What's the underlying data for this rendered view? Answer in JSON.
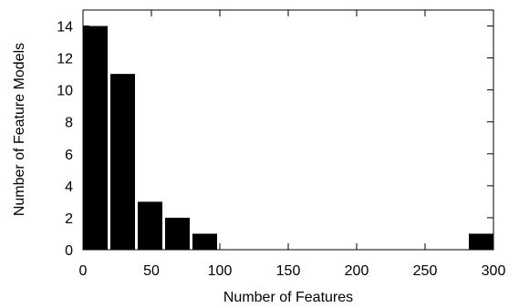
{
  "chart_data": {
    "type": "bar",
    "title": "",
    "xlabel": "Number of Features",
    "ylabel": "Number of Feature Models",
    "xlim": [
      0,
      300
    ],
    "ylim": [
      0,
      15
    ],
    "xticks": [
      0,
      50,
      100,
      150,
      200,
      250,
      300
    ],
    "yticks": [
      0,
      2,
      4,
      6,
      8,
      10,
      12,
      14
    ],
    "grid": false,
    "bar_color": "#000000",
    "bins": [
      {
        "x0": 0,
        "x1": 18,
        "value": 14
      },
      {
        "x0": 20,
        "x1": 38,
        "value": 11
      },
      {
        "x0": 40,
        "x1": 58,
        "value": 3
      },
      {
        "x0": 60,
        "x1": 78,
        "value": 2
      },
      {
        "x0": 80,
        "x1": 98,
        "value": 1
      },
      {
        "x0": 282,
        "x1": 300,
        "value": 1
      }
    ]
  }
}
